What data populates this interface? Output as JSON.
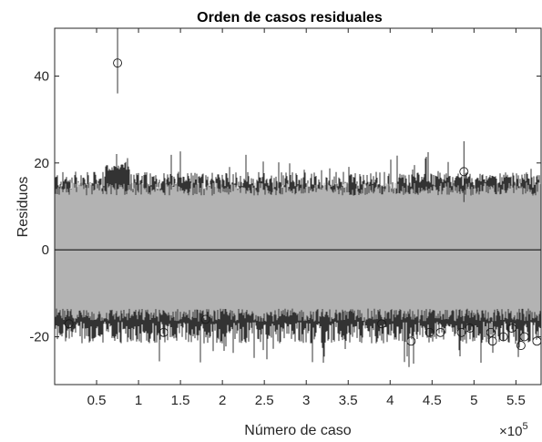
{
  "chart_data": {
    "type": "line",
    "title": "Orden de casos residuales",
    "xlabel": "Número de caso",
    "ylabel": "Residuos",
    "x_exponent_label": "×10",
    "x_exponent_power": "5",
    "xlim": [
      0,
      580000
    ],
    "ylim": [
      -31,
      51
    ],
    "x_ticks": [
      50000,
      100000,
      150000,
      200000,
      250000,
      300000,
      350000,
      400000,
      450000,
      500000,
      550000
    ],
    "x_tick_labels": [
      "0.5",
      "1",
      "1.5",
      "2",
      "2.5",
      "3",
      "3.5",
      "4",
      "4.5",
      "5",
      "5.5"
    ],
    "y_ticks": [
      -20,
      0,
      20,
      40
    ],
    "y_tick_labels": [
      "-20",
      "0",
      "20",
      "40"
    ],
    "grid": false,
    "colors": {
      "band_light": "#b3b3b3",
      "band_dark": "#333333",
      "axis": "#262626",
      "zero_line": "#000000"
    },
    "reference_line": {
      "y": 0
    },
    "bands": {
      "light": {
        "y_min": -15,
        "y_max": 14
      },
      "dark_upper_typical": 16,
      "dark_lower_typical": -19
    },
    "outliers": [
      {
        "x": 75000,
        "y": 43,
        "err_low": 36,
        "err_high": 51
      },
      {
        "x": 488000,
        "y": 18,
        "err_low": 11,
        "err_high": 25
      },
      {
        "x": 17000,
        "y": -17
      },
      {
        "x": 130000,
        "y": -19
      },
      {
        "x": 180000,
        "y": -16
      },
      {
        "x": 390000,
        "y": -17
      },
      {
        "x": 425000,
        "y": -21
      },
      {
        "x": 447000,
        "y": -19
      },
      {
        "x": 460000,
        "y": -19
      },
      {
        "x": 485000,
        "y": -19
      },
      {
        "x": 495000,
        "y": -18
      },
      {
        "x": 520000,
        "y": -19
      },
      {
        "x": 522000,
        "y": -21
      },
      {
        "x": 535000,
        "y": -20
      },
      {
        "x": 545000,
        "y": -18
      },
      {
        "x": 556000,
        "y": -22
      },
      {
        "x": 560000,
        "y": -20
      },
      {
        "x": 575000,
        "y": -21
      }
    ]
  }
}
